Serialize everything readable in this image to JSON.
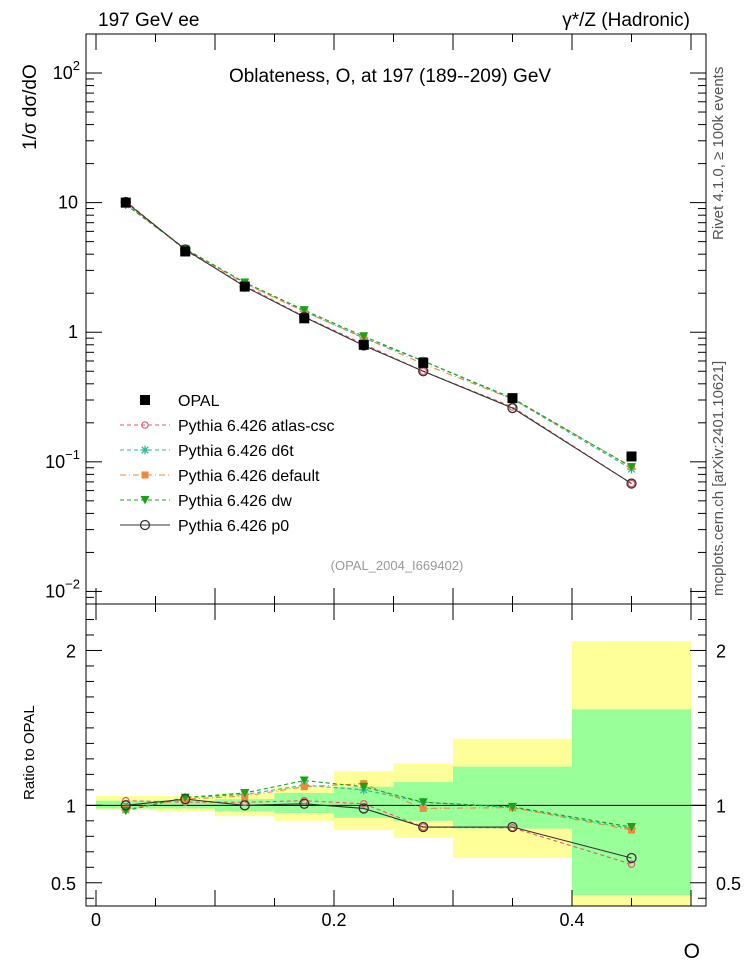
{
  "header": {
    "left": "197 GeV ee",
    "right": "γ*/Z (Hadronic)"
  },
  "side_label": {
    "top": "Rivet 4.1.0, ≥ 100k events",
    "bottom": "mcplots.cern.ch [arXiv:2401.10621]"
  },
  "chart_data": {
    "type": "line",
    "title": "Oblateness, O, at 197 (189--209) GeV",
    "watermark": "(OPAL_2004_I669402)",
    "xlabel": "O",
    "ylabel_top": "1/σ  dσ/dO",
    "ylabel_bottom": "Ratio to OPAL",
    "xlim": [
      0,
      0.5
    ],
    "ylim_top": [
      0.008,
      200
    ],
    "ylim_bottom": [
      0.35,
      2.3
    ],
    "y_scale_top": "log",
    "x_ticks": [
      {
        "value": 0,
        "label": "0"
      },
      {
        "value": 0.2,
        "label": "0.2"
      },
      {
        "value": 0.4,
        "label": "0.4"
      }
    ],
    "y_ticks_top": [
      {
        "value": 100,
        "label": "10",
        "sup": "2"
      },
      {
        "value": 10,
        "label": "10",
        "sup": ""
      },
      {
        "value": 1,
        "label": "1",
        "sup": ""
      },
      {
        "value": 0.1,
        "label": "10",
        "sup": "−1"
      },
      {
        "value": 0.01,
        "label": "10",
        "sup": "−2"
      }
    ],
    "y_ticks_bottom": [
      {
        "value": 0.5,
        "label": "0.5"
      },
      {
        "value": 1,
        "label": "1"
      },
      {
        "value": 2,
        "label": "2"
      }
    ],
    "bins": [
      {
        "lo": 0.0,
        "hi": 0.05,
        "x": 0.025
      },
      {
        "lo": 0.05,
        "hi": 0.1,
        "x": 0.075
      },
      {
        "lo": 0.1,
        "hi": 0.15,
        "x": 0.125
      },
      {
        "lo": 0.15,
        "hi": 0.2,
        "x": 0.175
      },
      {
        "lo": 0.2,
        "hi": 0.25,
        "x": 0.225
      },
      {
        "lo": 0.25,
        "hi": 0.3,
        "x": 0.275
      },
      {
        "lo": 0.3,
        "hi": 0.4,
        "x": 0.35
      },
      {
        "lo": 0.4,
        "hi": 0.5,
        "x": 0.45
      }
    ],
    "data": {
      "name": "OPAL",
      "values": [
        10.0,
        4.2,
        2.25,
        1.28,
        0.8,
        0.58,
        0.31,
        0.11
      ],
      "band_inner": [
        [
          0.98,
          1.03
        ],
        [
          0.98,
          1.03
        ],
        [
          0.96,
          1.04
        ],
        [
          0.95,
          1.08
        ],
        [
          0.92,
          1.12
        ],
        [
          0.9,
          1.15
        ],
        [
          0.85,
          1.25
        ],
        [
          0.42,
          1.62
        ]
      ],
      "band_outer": [
        [
          0.97,
          1.06
        ],
        [
          0.96,
          1.06
        ],
        [
          0.93,
          1.08
        ],
        [
          0.9,
          1.12
        ],
        [
          0.84,
          1.22
        ],
        [
          0.79,
          1.27
        ],
        [
          0.66,
          1.43
        ],
        [
          0.3,
          2.06
        ]
      ]
    },
    "series": [
      {
        "name": "Pythia 6.426 atlas-csc",
        "color": "#e8586a",
        "dash": "4,3",
        "marker": "open-circle-small",
        "values": [
          10.3,
          4.28,
          2.3,
          1.32,
          0.81,
          0.5,
          0.265,
          0.068
        ],
        "ratio": [
          1.03,
          1.02,
          1.02,
          1.03,
          1.01,
          0.86,
          0.855,
          0.62
        ]
      },
      {
        "name": "Pythia 6.426 d6t",
        "color": "#27b8a0",
        "dash": "4,3",
        "marker": "star",
        "values": [
          9.7,
          4.4,
          2.4,
          1.45,
          0.9,
          0.6,
          0.305,
          0.088
        ],
        "ratio": [
          0.97,
          1.05,
          1.07,
          1.13,
          1.1,
          1.02,
          0.985,
          0.85
        ]
      },
      {
        "name": "Pythia 6.426 default",
        "color": "#f08a3a",
        "dash": "6,3,1,3",
        "marker": "square",
        "values": [
          9.75,
          4.35,
          2.38,
          1.44,
          0.91,
          0.57,
          0.305,
          0.092
        ],
        "ratio": [
          0.975,
          1.04,
          1.06,
          1.12,
          1.14,
          0.98,
          0.985,
          0.84
        ]
      },
      {
        "name": "Pythia 6.426 dw",
        "color": "#19a319",
        "dash": "4,3",
        "marker": "triangle-down",
        "values": [
          9.65,
          4.4,
          2.42,
          1.48,
          0.93,
          0.6,
          0.31,
          0.091
        ],
        "ratio": [
          0.965,
          1.05,
          1.08,
          1.16,
          1.12,
          1.02,
          0.99,
          0.86
        ]
      },
      {
        "name": "Pythia 6.426 p0",
        "color": "#333333",
        "dash": "",
        "marker": "open-circle",
        "values": [
          10.1,
          4.35,
          2.25,
          1.31,
          0.79,
          0.5,
          0.26,
          0.068
        ],
        "ratio": [
          1.0,
          1.04,
          1.0,
          1.01,
          0.98,
          0.86,
          0.86,
          0.66
        ]
      }
    ]
  }
}
